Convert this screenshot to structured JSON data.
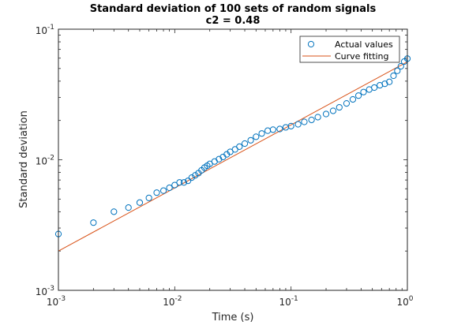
{
  "chart_data": {
    "type": "scatter",
    "title": "Standard deviation of 100 sets of random signals",
    "subtitle": "c2 = 0.48",
    "xlabel": "Time (s)",
    "ylabel": "Standard deviation",
    "xscale": "log",
    "yscale": "log",
    "xlim": [
      0.001,
      1
    ],
    "ylim": [
      0.001,
      0.1
    ],
    "x_ticks": [
      {
        "value": 0.001,
        "base": "10",
        "exp": "-3"
      },
      {
        "value": 0.01,
        "base": "10",
        "exp": "-2"
      },
      {
        "value": 0.1,
        "base": "10",
        "exp": "-1"
      },
      {
        "value": 1,
        "base": "10",
        "exp": "0"
      }
    ],
    "y_ticks": [
      {
        "value": 0.001,
        "base": "10",
        "exp": "-3"
      },
      {
        "value": 0.01,
        "base": "10",
        "exp": "-2"
      },
      {
        "value": 0.1,
        "base": "10",
        "exp": "-1"
      }
    ],
    "grid": false,
    "legend_position": "top-right",
    "series": [
      {
        "name": "Actual values",
        "kind": "markers",
        "marker": "open-circle",
        "color": "#0072BD",
        "x": [
          0.001,
          0.002,
          0.003,
          0.004,
          0.005,
          0.006,
          0.007,
          0.008,
          0.009,
          0.01,
          0.011,
          0.012,
          0.013,
          0.014,
          0.015,
          0.016,
          0.017,
          0.018,
          0.019,
          0.02,
          0.022,
          0.024,
          0.026,
          0.028,
          0.03,
          0.033,
          0.036,
          0.04,
          0.045,
          0.05,
          0.056,
          0.063,
          0.07,
          0.08,
          0.09,
          0.1,
          0.115,
          0.13,
          0.15,
          0.17,
          0.2,
          0.23,
          0.26,
          0.3,
          0.34,
          0.38,
          0.42,
          0.47,
          0.52,
          0.58,
          0.64,
          0.7,
          0.76,
          0.82,
          0.88,
          0.94,
          1.0
        ],
        "y": [
          0.0027,
          0.0033,
          0.004,
          0.0043,
          0.0047,
          0.0051,
          0.0056,
          0.0058,
          0.0061,
          0.0064,
          0.0067,
          0.0067,
          0.0069,
          0.0073,
          0.0076,
          0.0079,
          0.0083,
          0.0087,
          0.009,
          0.0093,
          0.0097,
          0.0101,
          0.0105,
          0.011,
          0.0115,
          0.012,
          0.0126,
          0.0133,
          0.0141,
          0.015,
          0.0159,
          0.0167,
          0.017,
          0.0172,
          0.0177,
          0.0181,
          0.0187,
          0.0195,
          0.0202,
          0.0212,
          0.0224,
          0.0237,
          0.0252,
          0.027,
          0.029,
          0.031,
          0.033,
          0.0345,
          0.0357,
          0.0372,
          0.0382,
          0.0395,
          0.044,
          0.048,
          0.052,
          0.0565,
          0.0595
        ]
      },
      {
        "name": "Curve fitting",
        "kind": "line",
        "color": "#D95319",
        "x": [
          0.001,
          1
        ],
        "y": [
          0.002,
          0.0563
        ]
      }
    ]
  }
}
